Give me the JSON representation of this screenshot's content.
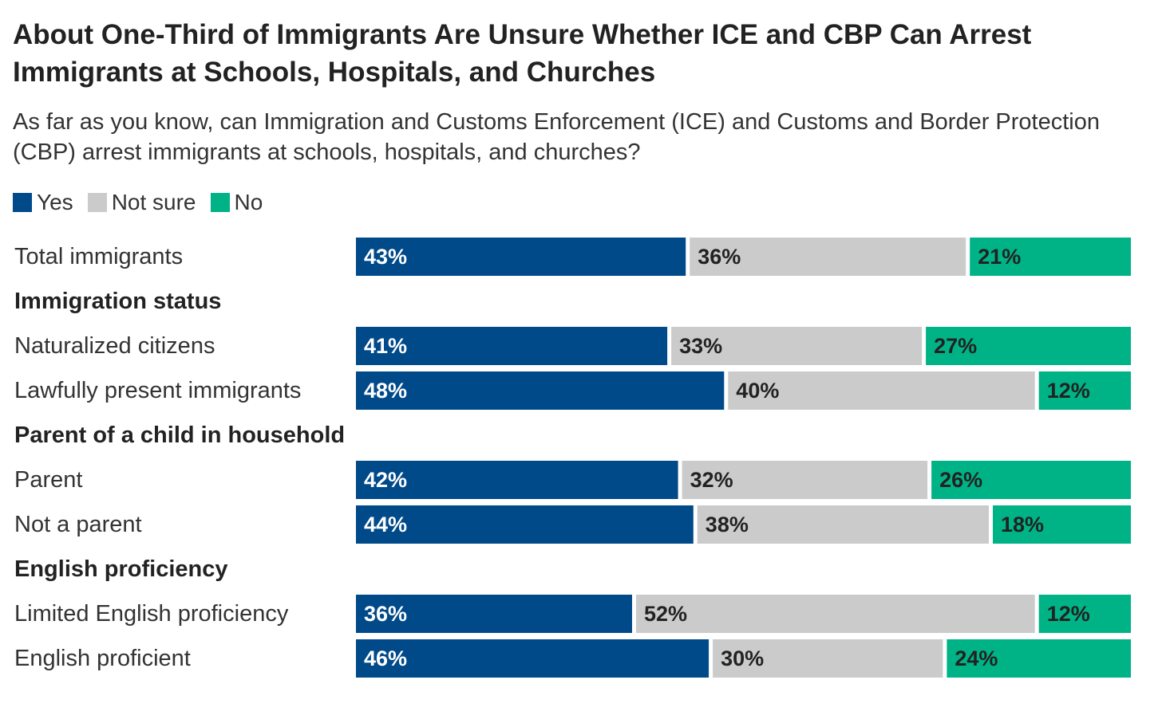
{
  "title": "About One-Third of Immigrants Are Unsure Whether ICE and CBP Can Arrest Immigrants at Schools, Hospitals, and Churches",
  "subtitle": "As far as you know, can Immigration and Customs Enforcement (ICE) and Customs and Border Protection (CBP) arrest immigrants at schools, hospitals, and churches?",
  "colors": {
    "yes": "#004a8a",
    "not_sure": "#cbcbcb",
    "no": "#00b386",
    "label_on_dark": "#ffffff",
    "label_on_light": "#222222"
  },
  "chart_data": {
    "type": "bar",
    "orientation": "horizontal",
    "stacked": true,
    "unit": "%",
    "legend_position": "top-left",
    "series": [
      {
        "name": "Yes",
        "color": "#004a8a"
      },
      {
        "name": "Not sure",
        "color": "#cbcbcb"
      },
      {
        "name": "No",
        "color": "#00b386"
      }
    ],
    "rows": [
      {
        "kind": "bar",
        "label": "Total immigrants",
        "values": [
          43,
          36,
          21
        ]
      },
      {
        "kind": "group",
        "label": "Immigration status"
      },
      {
        "kind": "bar",
        "label": "Naturalized citizens",
        "values": [
          41,
          33,
          27
        ]
      },
      {
        "kind": "bar",
        "label": "Lawfully present immigrants",
        "values": [
          48,
          40,
          12
        ]
      },
      {
        "kind": "group",
        "label": "Parent of a child in household"
      },
      {
        "kind": "bar",
        "label": "Parent",
        "values": [
          42,
          32,
          26
        ]
      },
      {
        "kind": "bar",
        "label": "Not a parent",
        "values": [
          44,
          38,
          18
        ]
      },
      {
        "kind": "group",
        "label": "English proficiency"
      },
      {
        "kind": "bar",
        "label": "Limited English proficiency",
        "values": [
          36,
          52,
          12
        ]
      },
      {
        "kind": "bar",
        "label": "English proficient",
        "values": [
          46,
          30,
          24
        ]
      }
    ]
  }
}
